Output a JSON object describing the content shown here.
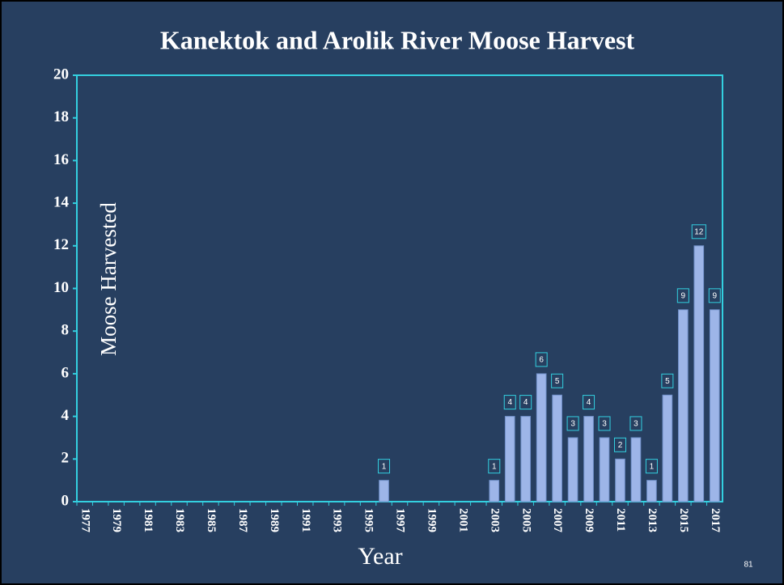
{
  "chart_data": {
    "type": "bar",
    "title": "Kanektok and Arolik River Moose Harvest",
    "x_label": "Year",
    "y_label": "Moose Harvested",
    "page_number": "81",
    "categories": [
      "1977",
      null,
      "1979",
      null,
      "1981",
      null,
      "1983",
      null,
      "1985",
      null,
      "1987",
      null,
      "1989",
      null,
      "1991",
      null,
      "1993",
      null,
      "1995",
      null,
      "1997",
      null,
      "1999",
      null,
      "2001",
      null,
      "2003",
      null,
      "2005",
      null,
      "2007",
      null,
      "2009",
      null,
      "2011",
      null,
      "2013",
      null,
      "2015",
      null,
      "2017"
    ],
    "values": [
      null,
      null,
      null,
      null,
      null,
      null,
      null,
      null,
      null,
      null,
      null,
      null,
      null,
      null,
      null,
      null,
      null,
      null,
      null,
      1,
      null,
      null,
      null,
      null,
      null,
      null,
      1,
      4,
      4,
      6,
      5,
      3,
      4,
      3,
      2,
      3,
      1,
      5,
      9,
      12,
      9
    ],
    "color": "#9db5e8",
    "ylim": [
      0,
      20
    ],
    "yticks": [
      0,
      2,
      4,
      6,
      8,
      10,
      12,
      14,
      16,
      18,
      20
    ]
  }
}
